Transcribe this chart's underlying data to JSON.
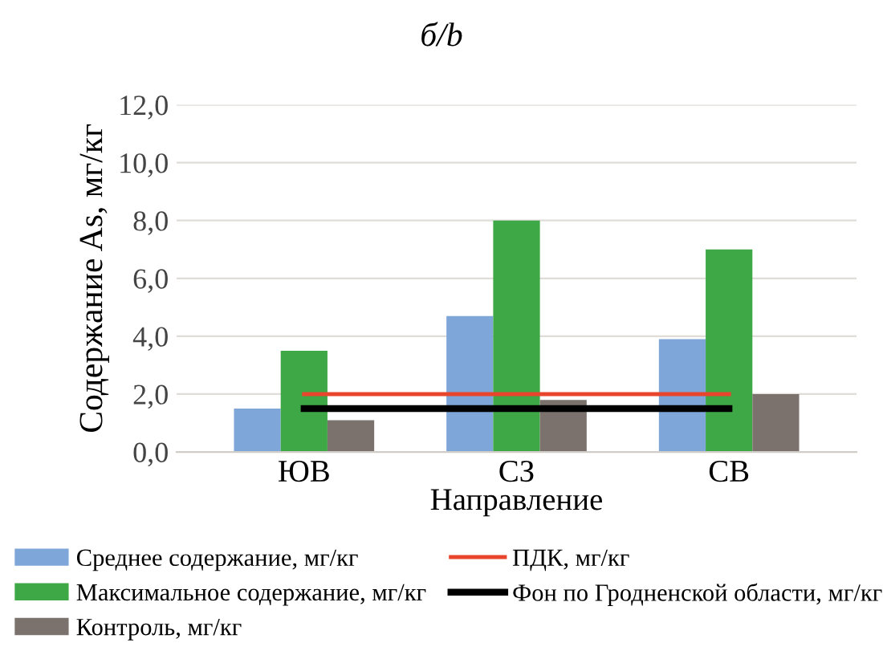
{
  "chart_data": {
    "type": "bar",
    "title": "б/b",
    "xlabel": "Направление",
    "ylabel": "Содержание As, мг/кг",
    "categories": [
      "ЮВ",
      "СЗ",
      "СВ"
    ],
    "series": [
      {
        "name": "Среднее содержание, мг/кг",
        "color": "#7ea6d9",
        "values": [
          1.5,
          4.7,
          3.9
        ]
      },
      {
        "name": "Максимальное содержание, мг/кг",
        "color": "#3fa846",
        "values": [
          3.5,
          8.0,
          7.0
        ]
      },
      {
        "name": "Контроль, мг/кг",
        "color": "#7b726e",
        "values": [
          1.1,
          1.8,
          2.0
        ]
      },
      {
        "name": "ПДК, мг/кг",
        "color": "#e8452c",
        "type": "line",
        "values": [
          2.0,
          2.0,
          2.0
        ]
      },
      {
        "name": "Фон по Гродненской области, мг/кг",
        "color": "#000000",
        "type": "line",
        "values": [
          1.5,
          1.5,
          1.5
        ]
      }
    ],
    "ylim": [
      0,
      12
    ],
    "yticks": [
      {
        "value": 0,
        "label": "0,0"
      },
      {
        "value": 2,
        "label": "2,0"
      },
      {
        "value": 4,
        "label": "4,0"
      },
      {
        "value": 6,
        "label": "6,0"
      },
      {
        "value": 8,
        "label": "8,0"
      },
      {
        "value": 10,
        "label": "10,0"
      },
      {
        "value": 12,
        "label": "12,0"
      }
    ],
    "grid": "y",
    "legend": "bottom"
  }
}
